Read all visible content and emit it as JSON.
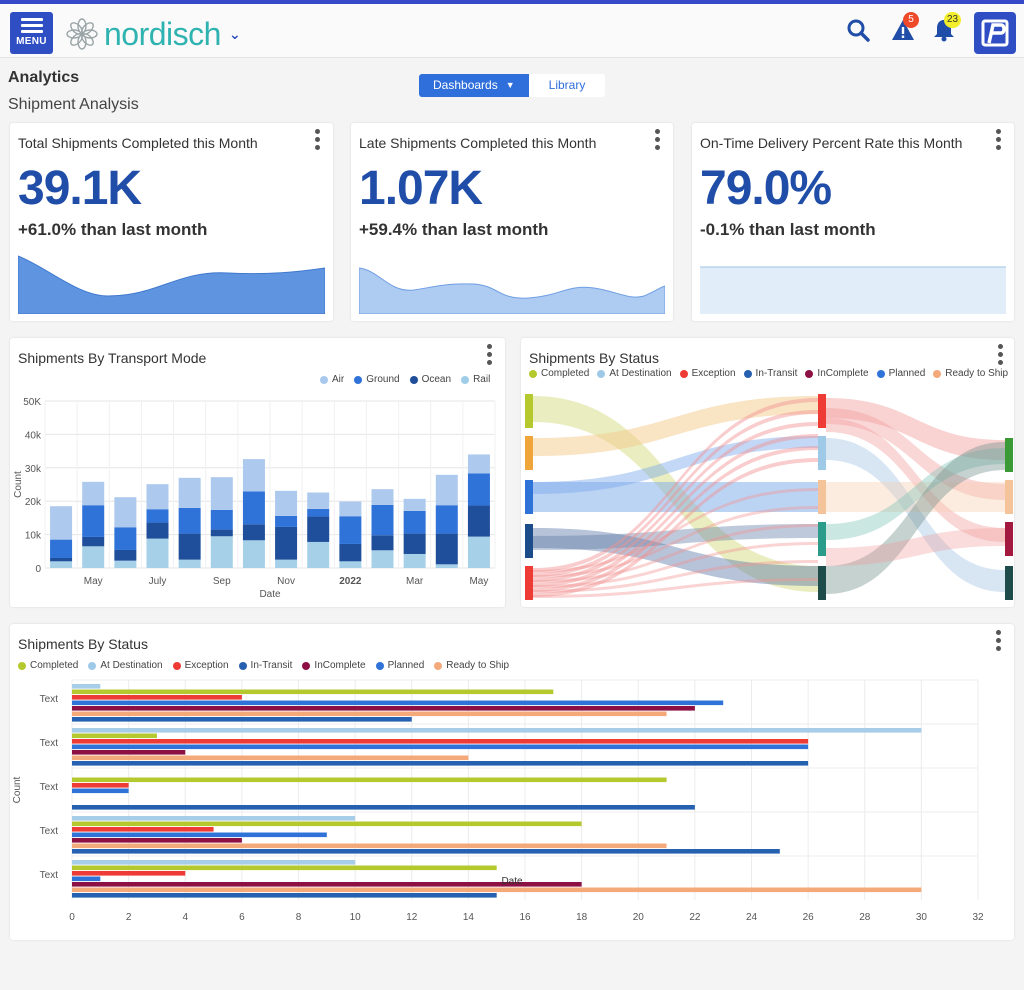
{
  "header": {
    "menu_label": "MENU",
    "brand": "nordisch",
    "alerts_count": "5",
    "notifications_count": "23",
    "accent": "#2f4ec4"
  },
  "page": {
    "title": "Analytics",
    "subtitle": "Shipment Analysis"
  },
  "view_toggle": {
    "active": "Dashboards",
    "other": "Library"
  },
  "kpis": [
    {
      "title": "Total Shipments Completed this Month",
      "value": "39.1K",
      "delta": "+61.0% than last month"
    },
    {
      "title": "Late Shipments Completed this Month",
      "value": "1.07K",
      "delta": "+59.4% than last month"
    },
    {
      "title": "On-Time Delivery Percent Rate this Month",
      "value": "79.0%",
      "delta": "-0.1% than last month"
    }
  ],
  "transport": {
    "title": "Shipments By Transport Mode",
    "legend": [
      {
        "name": "Air",
        "color": "#a9c8ee"
      },
      {
        "name": "Ground",
        "color": "#2f73d8"
      },
      {
        "name": "Ocean",
        "color": "#1f4f9a"
      },
      {
        "name": "Rail",
        "color": "#9fcde8"
      }
    ]
  },
  "sankey": {
    "title": "Shipments By Status",
    "legend": [
      {
        "name": "Completed",
        "color": "#b5c92f"
      },
      {
        "name": "At Destination",
        "color": "#9ecae8"
      },
      {
        "name": "Exception",
        "color": "#ee3b36"
      },
      {
        "name": "In-Transit",
        "color": "#2660b0"
      },
      {
        "name": "InComplete",
        "color": "#8c1043"
      },
      {
        "name": "Planned",
        "color": "#2f73d8"
      },
      {
        "name": "Ready to Ship",
        "color": "#f4a97a"
      }
    ]
  },
  "status_bars": {
    "title": "Shipments By Status",
    "legend": [
      {
        "name": "Completed",
        "color": "#b5c92f"
      },
      {
        "name": "At Destination",
        "color": "#9ecae8"
      },
      {
        "name": "Exception",
        "color": "#ee3b36"
      },
      {
        "name": "In-Transit",
        "color": "#2660b0"
      },
      {
        "name": "InComplete",
        "color": "#8c1043"
      },
      {
        "name": "Planned",
        "color": "#2f73d8"
      },
      {
        "name": "Ready to Ship",
        "color": "#f4a97a"
      }
    ]
  },
  "chart_data": [
    {
      "type": "bar",
      "stacked": true,
      "ylabel": "Count",
      "xlabel": "Date",
      "ylim": [
        0,
        50000
      ],
      "y_ticks": [
        "0",
        "10k",
        "20k",
        "30k",
        "40k",
        "50K"
      ],
      "x_tick_labels": [
        "May",
        "July",
        "Sep",
        "Nov",
        "2022",
        "Mar",
        "May"
      ],
      "x_tick_bar_index": [
        1,
        3,
        5,
        7,
        9,
        11,
        13
      ],
      "grid": true,
      "legend_position": "top-right",
      "series": [
        {
          "name": "Rail",
          "values": [
            2000,
            6500,
            2200,
            8800,
            2500,
            9500,
            8300,
            2500,
            7800,
            2000,
            5300,
            4200,
            1100,
            9400
          ]
        },
        {
          "name": "Ocean",
          "values": [
            1000,
            2800,
            3200,
            4800,
            7800,
            2000,
            4800,
            9800,
            7600,
            5200,
            4500,
            6100,
            9200,
            9300
          ]
        },
        {
          "name": "Ground",
          "values": [
            5500,
            9500,
            6800,
            4000,
            7700,
            5900,
            9800,
            3300,
            2300,
            8300,
            9100,
            6800,
            8500,
            9600
          ]
        },
        {
          "name": "Air",
          "values": [
            10000,
            7000,
            9000,
            7500,
            9000,
            9800,
            9700,
            7500,
            4900,
            4400,
            4700,
            3600,
            9100,
            5700
          ]
        }
      ]
    },
    {
      "type": "sankey",
      "left_nodes": [
        "Completed",
        "Ready to Ship",
        "Planned",
        "In-Transit",
        "Exception"
      ],
      "middle_nodes": [
        "Exception",
        "At Destination",
        "Ready to Ship",
        "Completed",
        "In-Transit"
      ],
      "right_nodes": [
        "Completed",
        "Ready to Ship",
        "InComplete",
        "In-Transit"
      ]
    },
    {
      "type": "bar",
      "orientation": "horizontal",
      "ylabel": "Count",
      "xlabel": "Date",
      "xlim": [
        0,
        32
      ],
      "x_ticks": [
        0,
        2,
        4,
        6,
        8,
        10,
        12,
        14,
        16,
        18,
        20,
        22,
        24,
        26,
        28,
        30,
        32
      ],
      "categories": [
        "Text",
        "Text",
        "Text",
        "Text",
        "Text"
      ],
      "series": [
        {
          "name": "At Destination",
          "values": [
            1,
            30,
            0,
            10,
            10
          ]
        },
        {
          "name": "Completed",
          "values": [
            17,
            3,
            21,
            18,
            15
          ]
        },
        {
          "name": "Exception",
          "values": [
            6,
            26,
            2,
            5,
            4
          ]
        },
        {
          "name": "Planned",
          "values": [
            23,
            26,
            2,
            9,
            1
          ]
        },
        {
          "name": "InComplete",
          "values": [
            22,
            4,
            0,
            6,
            18
          ]
        },
        {
          "name": "Ready to Ship",
          "values": [
            21,
            14,
            0,
            21,
            30
          ]
        },
        {
          "name": "In-Transit",
          "values": [
            12,
            26,
            22,
            25,
            15
          ]
        }
      ]
    }
  ]
}
